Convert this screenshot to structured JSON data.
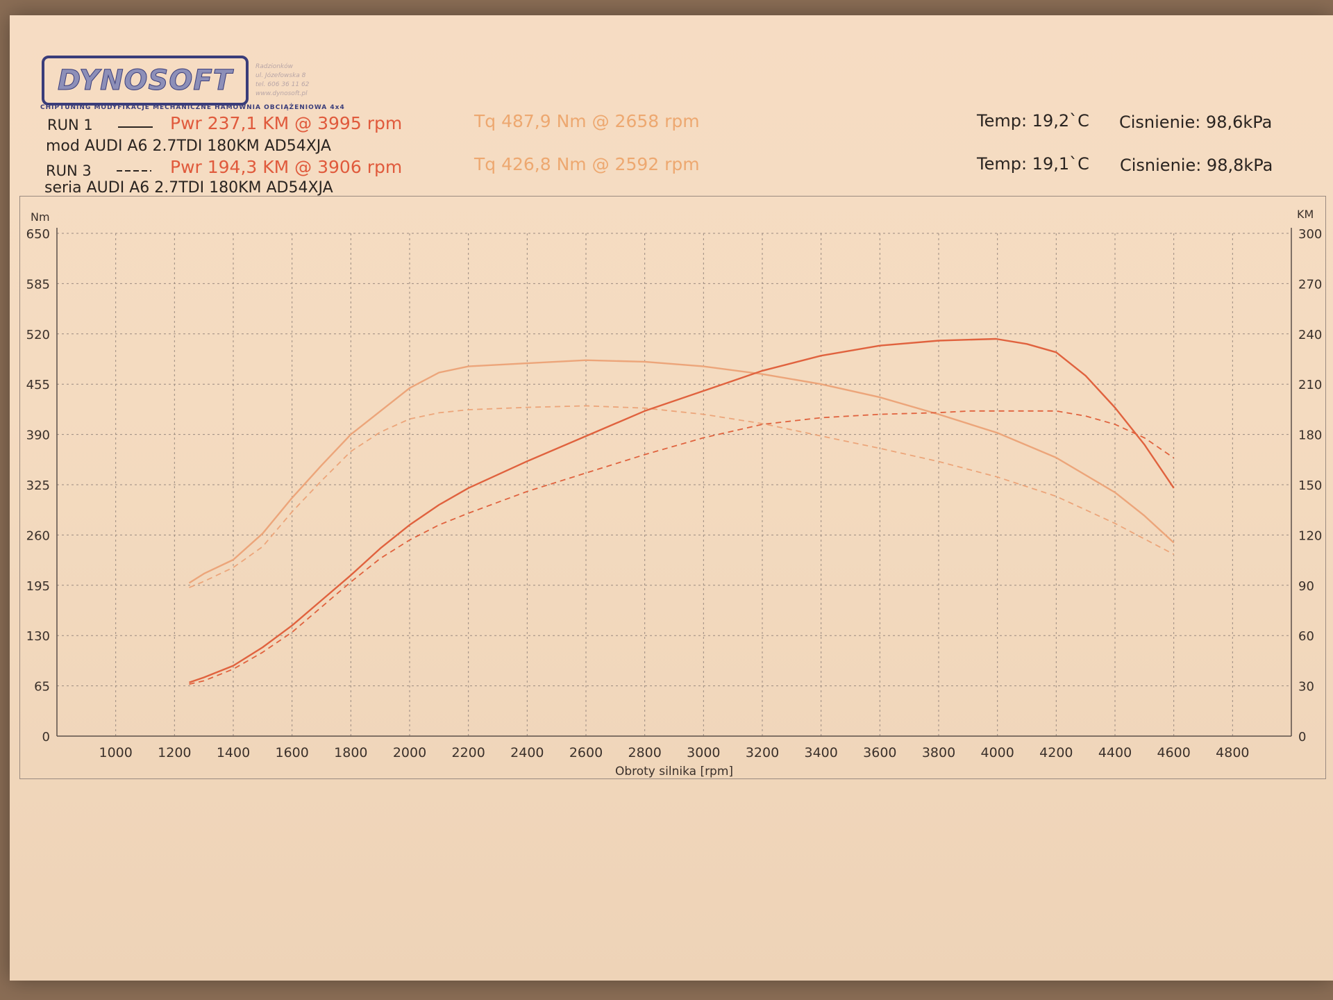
{
  "brand": {
    "logo_text": "DYNOSOFT",
    "tagline": "CHIPTUNING   MODYFIKACJE MECHANICZNE   HAMOWNIA OBCIĄŻENIOWA 4x4",
    "address_lines": [
      "Radzionków",
      "ul. Józefowska 8",
      "tel. 606 36 11 62",
      "www.dynosoft.pl"
    ]
  },
  "runs": [
    {
      "run_label": "RUN 1",
      "pwr_text": "Pwr  237,1 KM @ 3995 rpm",
      "tq_text": "Tq 487,9 Nm @ 2658 rpm",
      "description": "mod AUDI A6 2.7TDI 180KM AD54XJA",
      "temp_text": "Temp: 19,2`C",
      "pressure_text": "Cisnienie: 98,6kPa"
    },
    {
      "run_label": "RUN 3",
      "pwr_text": "Pwr  194,3 KM @ 3906 rpm",
      "tq_text": "Tq 426,8 Nm @ 2592 rpm",
      "description": "seria AUDI A6 2.7TDI 180KM AD54XJA",
      "temp_text": "Temp: 19,1`C",
      "pressure_text": "Cisnienie: 98,8kPa"
    }
  ],
  "chart_data": {
    "type": "line",
    "xlabel": "Obroty silnika [rpm]",
    "ylabel_left": "Nm",
    "ylabel_right": "KM",
    "xlim": [
      800,
      5000
    ],
    "ylim_left": [
      0,
      650
    ],
    "ylim_right": [
      0,
      300
    ],
    "x_ticks": [
      1000,
      1200,
      1400,
      1600,
      1800,
      2000,
      2200,
      2400,
      2600,
      2800,
      3000,
      3200,
      3400,
      3600,
      3800,
      4000,
      4200,
      4400,
      4600,
      4800
    ],
    "y_ticks_left": [
      0,
      65,
      130,
      195,
      260,
      325,
      390,
      455,
      520,
      585,
      650
    ],
    "y_ticks_right": [
      0,
      30,
      60,
      90,
      120,
      150,
      180,
      210,
      240,
      270,
      300
    ],
    "grid": true,
    "colors": {
      "torque": "#eca57a",
      "power": "#e0623e",
      "grid": "#9a8a80",
      "axis": "#5a4e48"
    },
    "series": [
      {
        "name": "RUN 1",
        "kind": "torque",
        "axis": "left",
        "style": "solid",
        "x": [
          1250,
          1300,
          1400,
          1500,
          1600,
          1700,
          1800,
          1900,
          2000,
          2100,
          2200,
          2400,
          2600,
          2800,
          3000,
          3200,
          3400,
          3600,
          3800,
          4000,
          4200,
          4400,
          4500,
          4600
        ],
        "y": [
          198,
          210,
          228,
          262,
          308,
          350,
          390,
          420,
          450,
          470,
          478,
          482,
          486,
          484,
          478,
          468,
          455,
          438,
          416,
          392,
          360,
          315,
          285,
          250
        ]
      },
      {
        "name": "RUN 3",
        "kind": "torque",
        "axis": "left",
        "style": "dashed",
        "x": [
          1250,
          1300,
          1400,
          1500,
          1600,
          1700,
          1800,
          1900,
          2000,
          2100,
          2200,
          2400,
          2600,
          2800,
          3000,
          3200,
          3400,
          3600,
          3800,
          4000,
          4200,
          4400,
          4500,
          4600
        ],
        "y": [
          192,
          200,
          218,
          245,
          290,
          330,
          368,
          393,
          410,
          418,
          422,
          425,
          427,
          424,
          416,
          404,
          388,
          372,
          355,
          335,
          310,
          275,
          255,
          235
        ]
      },
      {
        "name": "RUN 1",
        "kind": "power",
        "axis": "right",
        "style": "solid",
        "x": [
          1250,
          1300,
          1400,
          1500,
          1600,
          1700,
          1800,
          1900,
          2000,
          2100,
          2200,
          2400,
          2600,
          2800,
          3000,
          3200,
          3400,
          3600,
          3800,
          3995,
          4100,
          4200,
          4300,
          4400,
          4500,
          4600
        ],
        "y": [
          32,
          35,
          42,
          53,
          66,
          81,
          96,
          112,
          126,
          138,
          148,
          164,
          179,
          194,
          206,
          218,
          227,
          233,
          236,
          237,
          234,
          229,
          215,
          196,
          174,
          148
        ]
      },
      {
        "name": "RUN 3",
        "kind": "power",
        "axis": "right",
        "style": "dashed",
        "x": [
          1250,
          1300,
          1400,
          1500,
          1600,
          1700,
          1800,
          1900,
          2000,
          2100,
          2200,
          2400,
          2600,
          2800,
          3000,
          3200,
          3400,
          3600,
          3800,
          3906,
          4000,
          4200,
          4300,
          4400,
          4500,
          4600
        ],
        "y": [
          31,
          33,
          40,
          50,
          62,
          77,
          92,
          106,
          117,
          126,
          133,
          146,
          157,
          168,
          178,
          186,
          190,
          192,
          193,
          194,
          194,
          194,
          191,
          186,
          178,
          166
        ]
      }
    ]
  }
}
